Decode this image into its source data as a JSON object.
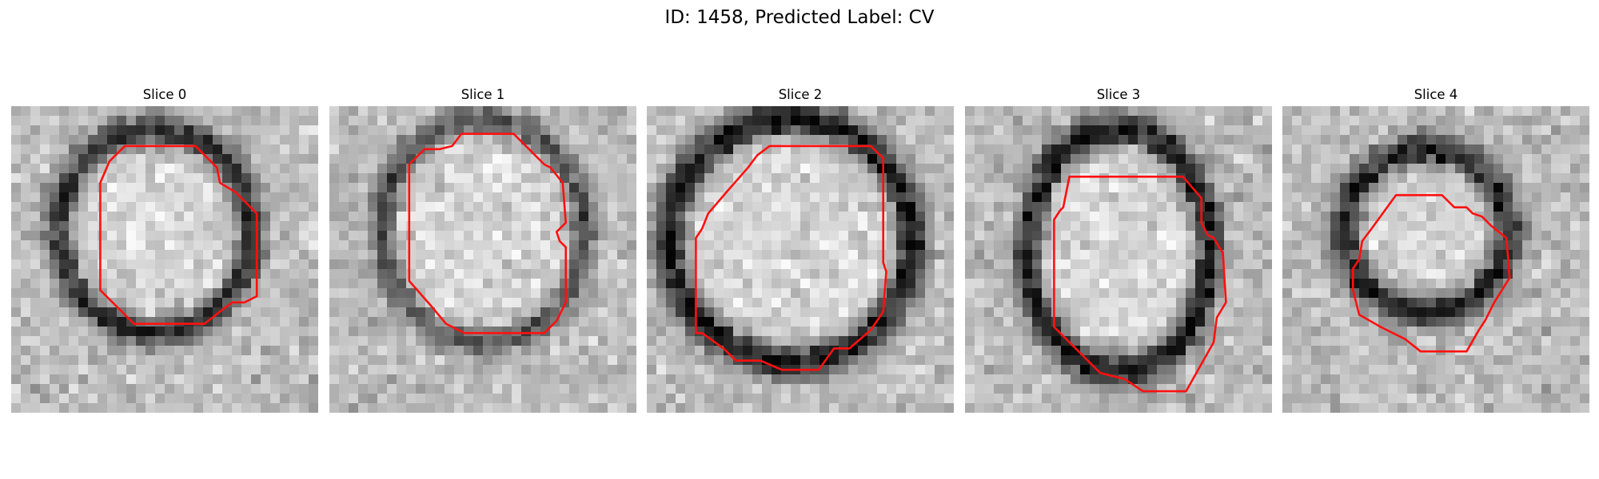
{
  "figure": {
    "title": "ID: 1458, Predicted Label: CV"
  },
  "colors": {
    "contour": "#ff1010",
    "background": "#ffffff"
  },
  "slices": [
    {
      "title": "Slice 0"
    },
    {
      "title": "Slice 1"
    },
    {
      "title": "Slice 2"
    },
    {
      "title": "Slice 3"
    },
    {
      "title": "Slice 4"
    }
  ]
}
